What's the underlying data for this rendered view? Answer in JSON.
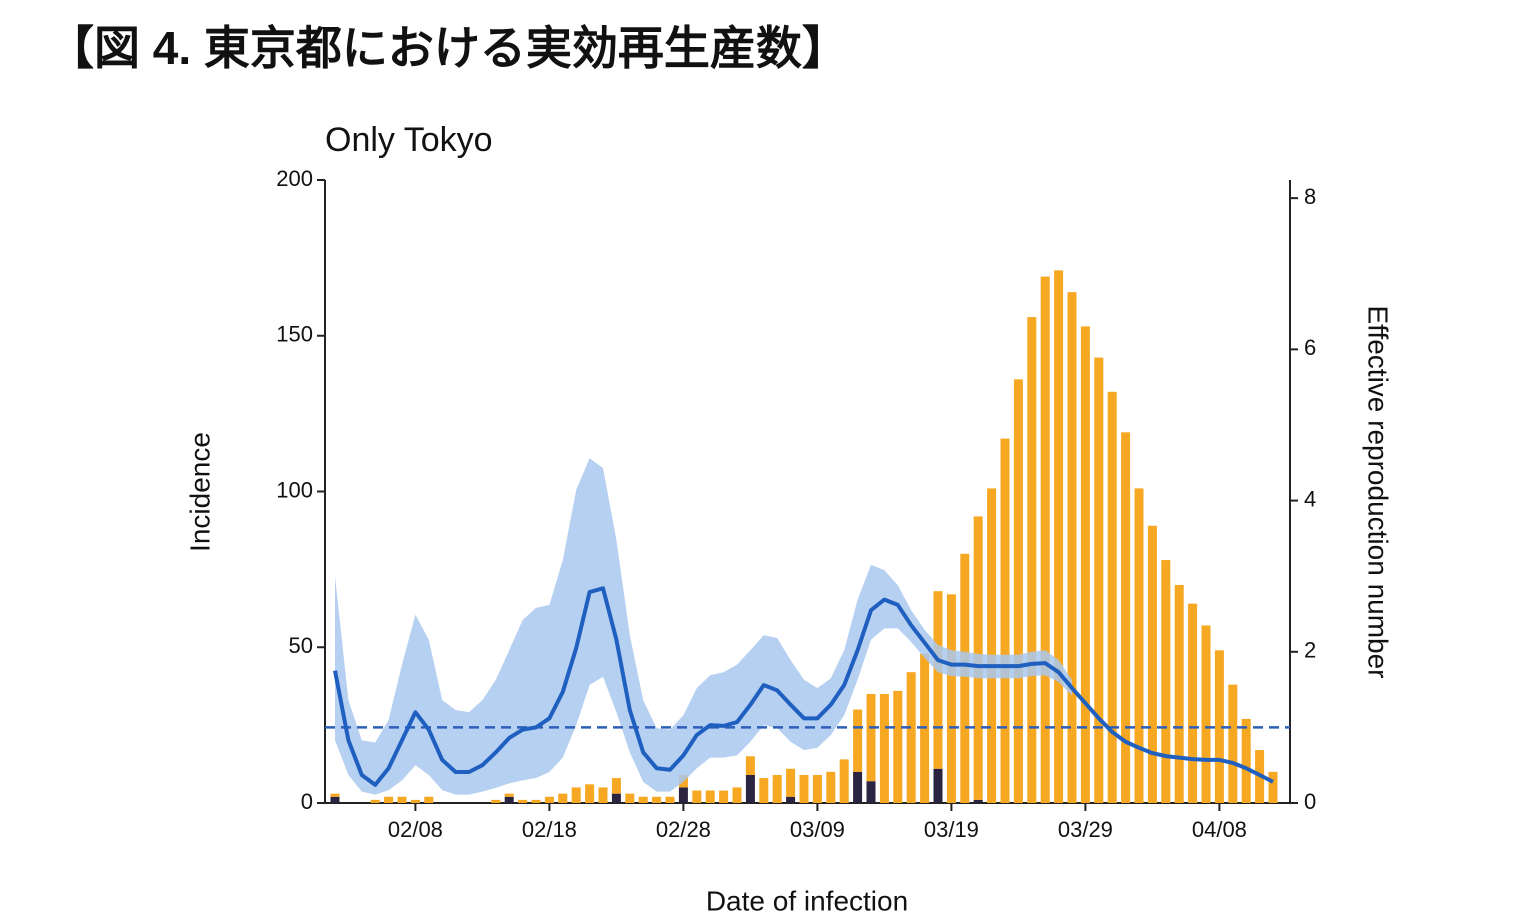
{
  "chart_data": {
    "type": "bar",
    "title": "【図 4. 東京都における実効再生産数】",
    "subtitle": "Only Tokyo",
    "x_label": "Date of infection",
    "y_label": "Incidence",
    "y2_label": "Effective reproduction number",
    "categories": [
      null,
      null,
      null,
      null,
      null,
      null,
      "02/08",
      null,
      null,
      null,
      null,
      null,
      null,
      null,
      null,
      null,
      "02/18",
      null,
      null,
      null,
      null,
      null,
      null,
      null,
      null,
      null,
      "02/28",
      null,
      null,
      null,
      null,
      null,
      null,
      null,
      null,
      null,
      "03/09",
      null,
      null,
      null,
      null,
      null,
      null,
      null,
      null,
      null,
      "03/19",
      null,
      null,
      null,
      null,
      null,
      null,
      null,
      null,
      null,
      "03/29",
      null,
      null,
      null,
      null,
      null,
      null,
      null,
      null,
      null,
      "04/08",
      null,
      null,
      null,
      null
    ],
    "ylim": [
      0,
      200
    ],
    "yticks": [
      0,
      50,
      100,
      150,
      200
    ],
    "y2lim": [
      0,
      8.24
    ],
    "y2ticks": [
      0,
      2,
      4,
      6,
      8
    ],
    "stacked": true,
    "series": [
      {
        "color": "#2a2440",
        "values": [
          2,
          0,
          0,
          0,
          0,
          0,
          0,
          0,
          0,
          0,
          0,
          0,
          0,
          2,
          0,
          0,
          0,
          0,
          0,
          0,
          0,
          3,
          0,
          0,
          0,
          0,
          5,
          0,
          0,
          0,
          0,
          9,
          0,
          0,
          2,
          0,
          0,
          0,
          0,
          10,
          7,
          0,
          0,
          0,
          0,
          11,
          0,
          0,
          1,
          0,
          0,
          0,
          0,
          0,
          0,
          0,
          0,
          0,
          0,
          0,
          0,
          0,
          0,
          0,
          0,
          0,
          0,
          0,
          0,
          0,
          0
        ]
      },
      {
        "color": "#f7a823",
        "values": [
          1,
          0,
          0,
          1,
          2,
          2,
          1,
          2,
          0,
          0,
          0,
          0,
          1,
          1,
          1,
          1,
          2,
          3,
          5,
          6,
          5,
          5,
          3,
          2,
          2,
          2,
          4,
          4,
          4,
          4,
          5,
          6,
          8,
          9,
          9,
          9,
          9,
          10,
          14,
          20,
          28,
          35,
          36,
          42,
          48,
          57,
          67,
          80,
          91,
          101,
          117,
          136,
          156,
          169,
          171,
          164,
          153,
          143,
          132,
          119,
          101,
          89,
          78,
          70,
          64,
          57,
          49,
          38,
          27,
          17,
          10
        ]
      },
      {
        "type": "line",
        "axis": "y2",
        "color": "#1f5fbf",
        "values": [
          1.75,
          0.83,
          0.37,
          0.24,
          0.46,
          0.83,
          1.2,
          0.97,
          0.57,
          0.41,
          0.41,
          0.5,
          0.67,
          0.86,
          0.97,
          1.0,
          1.12,
          1.47,
          2.05,
          2.79,
          2.84,
          2.16,
          1.23,
          0.67,
          0.46,
          0.44,
          0.63,
          0.9,
          1.03,
          1.02,
          1.07,
          1.3,
          1.56,
          1.49,
          1.3,
          1.12,
          1.12,
          1.3,
          1.56,
          2.02,
          2.55,
          2.69,
          2.62,
          2.35,
          2.12,
          1.89,
          1.83,
          1.83,
          1.81,
          1.81,
          1.81,
          1.81,
          1.84,
          1.85,
          1.73,
          1.52,
          1.32,
          1.12,
          0.94,
          0.81,
          0.73,
          0.66,
          0.62,
          0.6,
          0.58,
          0.57,
          0.57,
          0.53,
          0.46,
          0.37,
          0.28
        ]
      },
      {
        "type": "band",
        "axis": "y2",
        "color": "#a9c8ee",
        "lower": [
          0.83,
          0.37,
          0.15,
          0.11,
          0.17,
          0.3,
          0.5,
          0.37,
          0.17,
          0.11,
          0.11,
          0.15,
          0.2,
          0.26,
          0.3,
          0.33,
          0.41,
          0.6,
          1.03,
          1.56,
          1.67,
          1.2,
          0.67,
          0.28,
          0.15,
          0.15,
          0.28,
          0.46,
          0.6,
          0.6,
          0.63,
          0.81,
          1.03,
          0.99,
          0.81,
          0.7,
          0.73,
          0.9,
          1.16,
          1.63,
          2.16,
          2.31,
          2.31,
          2.13,
          1.92,
          1.73,
          1.68,
          1.67,
          1.65,
          1.65,
          1.65,
          1.65,
          1.68,
          1.69,
          1.6,
          1.42,
          null,
          null,
          null,
          null,
          null,
          null,
          null,
          null,
          null,
          null,
          null,
          null,
          null,
          null,
          null
        ],
        "upper": [
          3.0,
          1.36,
          0.83,
          0.8,
          1.1,
          1.83,
          2.49,
          2.16,
          1.36,
          1.23,
          1.2,
          1.36,
          1.63,
          2.02,
          2.42,
          2.58,
          2.62,
          3.21,
          4.14,
          4.56,
          4.43,
          3.48,
          2.22,
          1.36,
          0.99,
          0.97,
          1.16,
          1.52,
          1.69,
          1.73,
          1.83,
          2.02,
          2.22,
          2.18,
          1.89,
          1.63,
          1.52,
          1.65,
          2.02,
          2.69,
          3.15,
          3.08,
          2.88,
          2.55,
          2.29,
          2.09,
          2.02,
          2.0,
          1.97,
          1.96,
          1.96,
          1.96,
          2.0,
          2.02,
          1.89,
          1.63,
          null,
          null,
          null,
          null,
          null,
          null,
          null,
          null,
          null,
          null,
          null,
          null,
          null,
          null,
          null
        ]
      }
    ],
    "hline": {
      "axis": "y2",
      "value": 1,
      "color": "#2d5fb8",
      "dashed": true
    }
  }
}
